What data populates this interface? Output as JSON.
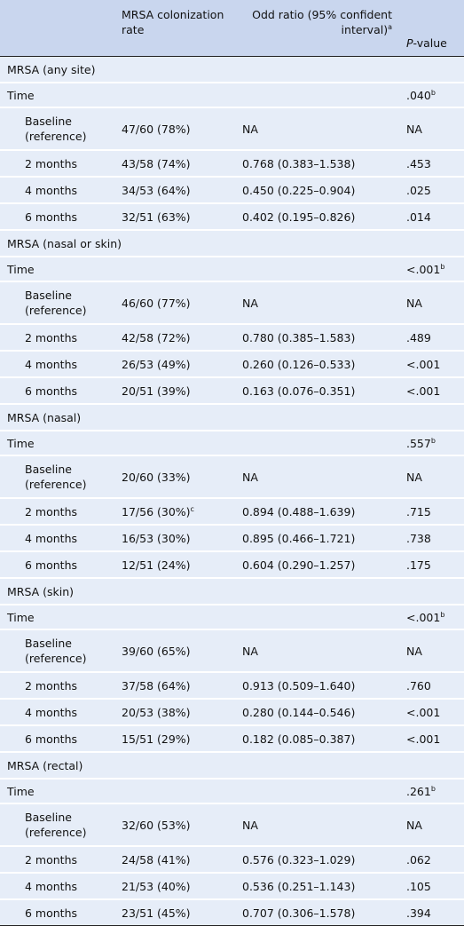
{
  "table": {
    "header": {
      "c0": "",
      "c1": "MRSA colonization rate",
      "c2": "Odd ratio (95% confident interval)",
      "c2_sup": "a",
      "c3_italic": "P",
      "c3": "-value"
    },
    "groups": [
      {
        "title": "MRSA (any site)",
        "time": "Time",
        "time_p": ".040",
        "time_p_sup": "b",
        "rows": [
          {
            "label": "Baseline (reference)",
            "rate": "47/60 (78%)",
            "or": "NA",
            "p": "NA"
          },
          {
            "label": "2 months",
            "rate": "43/58 (74%)",
            "or": "0.768 (0.383–1.538)",
            "p": ".453"
          },
          {
            "label": "4 months",
            "rate": "34/53 (64%)",
            "or": "0.450 (0.225–0.904)",
            "p": ".025"
          },
          {
            "label": "6 months",
            "rate": "32/51 (63%)",
            "or": "0.402 (0.195–0.826)",
            "p": ".014"
          }
        ]
      },
      {
        "title": "MRSA (nasal or skin)",
        "time": "Time",
        "time_p": "<.001",
        "time_p_sup": "b",
        "rows": [
          {
            "label": "Baseline (reference)",
            "rate": "46/60 (77%)",
            "or": "NA",
            "p": "NA"
          },
          {
            "label": "2 months",
            "rate": "42/58 (72%)",
            "or": "0.780 (0.385–1.583)",
            "p": ".489"
          },
          {
            "label": "4 months",
            "rate": "26/53 (49%)",
            "or": "0.260 (0.126–0.533)",
            "p": "<.001"
          },
          {
            "label": "6 months",
            "rate": "20/51 (39%)",
            "or": "0.163 (0.076–0.351)",
            "p": "<.001"
          }
        ]
      },
      {
        "title": "MRSA (nasal)",
        "time": "Time",
        "time_p": ".557",
        "time_p_sup": "b",
        "rows": [
          {
            "label": "Baseline (reference)",
            "rate": "20/60 (33%)",
            "or": "NA",
            "p": "NA"
          },
          {
            "label": "2 months",
            "rate": "17/56 (30%)",
            "rate_sup": "c",
            "or": "0.894 (0.488–1.639)",
            "p": ".715"
          },
          {
            "label": "4 months",
            "rate": "16/53 (30%)",
            "or": "0.895 (0.466–1.721)",
            "p": ".738"
          },
          {
            "label": "6 months",
            "rate": "12/51 (24%)",
            "or": "0.604 (0.290–1.257)",
            "p": ".175"
          }
        ]
      },
      {
        "title": "MRSA (skin)",
        "time": "Time",
        "time_p": "<.001",
        "time_p_sup": "b",
        "rows": [
          {
            "label": "Baseline (reference)",
            "rate": "39/60 (65%)",
            "or": "NA",
            "p": "NA"
          },
          {
            "label": "2 months",
            "rate": "37/58 (64%)",
            "or": "0.913 (0.509–1.640)",
            "p": ".760"
          },
          {
            "label": "4 months",
            "rate": "20/53 (38%)",
            "or": "0.280 (0.144–0.546)",
            "p": "<.001"
          },
          {
            "label": "6 months",
            "rate": "15/51 (29%)",
            "or": "0.182 (0.085–0.387)",
            "p": "<.001"
          }
        ]
      },
      {
        "title": "MRSA (rectal)",
        "time": "Time",
        "time_p": ".261",
        "time_p_sup": "b",
        "rows": [
          {
            "label": "Baseline (reference)",
            "rate": "32/60 (53%)",
            "or": "NA",
            "p": "NA"
          },
          {
            "label": "2 months",
            "rate": "24/58 (41%)",
            "or": "0.576 (0.323–1.029)",
            "p": ".062"
          },
          {
            "label": "4 months",
            "rate": "21/53 (40%)",
            "or": "0.536 (0.251–1.143)",
            "p": ".105"
          },
          {
            "label": "6 months",
            "rate": "23/51 (45%)",
            "or": "0.707 (0.306–1.578)",
            "p": ".394"
          }
        ]
      }
    ]
  }
}
